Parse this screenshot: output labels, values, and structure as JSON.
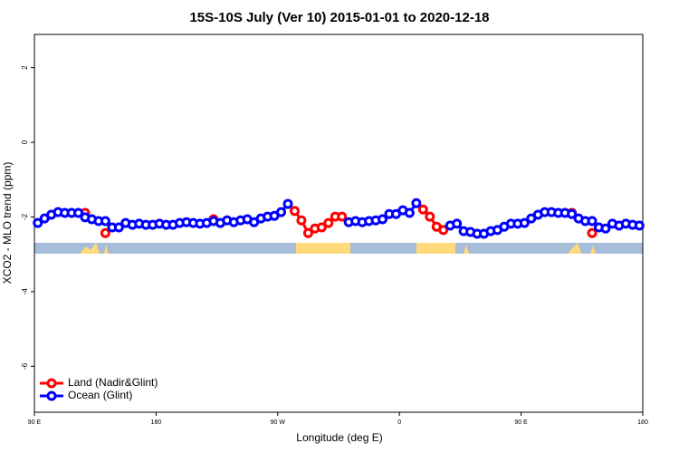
{
  "chart_data": {
    "type": "line",
    "title": "15S-10S July (Ver 10)   2015-01-01 to 2020-12-18",
    "xlabel": "Longitude (deg E)",
    "ylabel": "XCO2 - MLO trend (ppm)",
    "xlim": [
      90,
      540
    ],
    "ylim": [
      -7.23,
      2.89
    ],
    "xticks": [
      {
        "value": 90,
        "label": "90 E"
      },
      180,
      {
        "value": 270,
        "label": "90 W"
      },
      {
        "value": 360,
        "label": "0"
      },
      {
        "value": 450,
        "label": "90 E"
      },
      {
        "value": 540,
        "label": "180"
      }
    ],
    "yticks": [
      -6,
      -4,
      -2,
      0,
      2
    ],
    "legend": "bottomleft",
    "x": [
      92.5,
      97.5,
      102.5,
      107.5,
      112.5,
      117.5,
      122.5,
      127.5,
      132.5,
      137.5,
      142.5,
      147.5,
      152.5,
      157.5,
      162.5,
      167.5,
      172.5,
      177.5,
      182.5,
      187.5,
      192.5,
      197.5,
      202.5,
      207.5,
      212.5,
      217.5,
      222.5,
      227.5,
      232.5,
      237.5,
      242.5,
      247.5,
      252.5,
      257.5,
      262.5,
      267.5,
      272.5,
      277.5,
      282.5,
      287.5,
      292.5,
      297.5,
      302.5,
      307.5,
      312.5,
      317.5,
      322.5,
      327.5,
      332.5,
      337.5,
      342.5,
      347.5,
      352.5,
      357.5,
      362.5,
      367.5,
      372.5,
      377.5,
      382.5,
      387.5,
      392.5,
      397.5,
      402.5,
      407.5,
      412.5,
      417.5,
      422.5,
      427.5,
      432.5,
      437.5,
      442.5,
      447.5,
      452.5,
      457.5,
      462.5,
      467.5,
      472.5,
      477.5,
      482.5,
      487.5,
      492.5,
      497.5,
      502.5,
      507.5,
      512.5,
      517.5,
      522.5,
      527.5,
      532.5,
      537.5
    ],
    "series": [
      {
        "name": "Land (Nadir&Glint)",
        "color": "#ff0000",
        "values": [
          null,
          null,
          null,
          null,
          null,
          null,
          null,
          -1.89,
          null,
          null,
          -2.43,
          null,
          null,
          null,
          null,
          null,
          null,
          null,
          null,
          null,
          null,
          null,
          null,
          null,
          null,
          null,
          -2.06,
          null,
          null,
          null,
          null,
          null,
          null,
          null,
          null,
          null,
          null,
          null,
          -1.84,
          -2.09,
          -2.43,
          -2.31,
          -2.28,
          -2.16,
          -1.99,
          -1.99,
          null,
          null,
          null,
          null,
          null,
          null,
          null,
          null,
          null,
          null,
          null,
          -1.8,
          -1.99,
          -2.26,
          -2.35,
          null,
          null,
          null,
          null,
          null,
          null,
          null,
          null,
          null,
          null,
          null,
          null,
          null,
          null,
          null,
          null,
          null,
          null,
          -1.89,
          null,
          null,
          -2.43,
          null,
          null,
          null,
          null,
          null,
          null,
          null
        ]
      },
      {
        "name": "Ocean (Glint)",
        "color": "#0000ff",
        "values": [
          -2.16,
          -2.04,
          -1.94,
          -1.87,
          -1.89,
          -1.89,
          -1.89,
          -2.01,
          -2.06,
          -2.11,
          -2.11,
          -2.28,
          -2.28,
          -2.16,
          -2.21,
          -2.18,
          -2.21,
          -2.21,
          -2.18,
          -2.21,
          -2.21,
          -2.16,
          -2.14,
          -2.16,
          -2.18,
          -2.16,
          -2.11,
          -2.16,
          -2.09,
          -2.14,
          -2.09,
          -2.06,
          -2.14,
          -2.04,
          -1.99,
          -1.97,
          -1.87,
          -1.65,
          null,
          null,
          null,
          null,
          null,
          null,
          null,
          null,
          -2.14,
          -2.11,
          -2.14,
          -2.11,
          -2.09,
          -2.06,
          -1.92,
          -1.92,
          -1.82,
          -1.89,
          -1.63,
          null,
          null,
          null,
          null,
          -2.23,
          -2.18,
          -2.38,
          -2.4,
          -2.45,
          -2.45,
          -2.38,
          -2.35,
          -2.26,
          -2.18,
          -2.18,
          -2.16,
          -2.04,
          -1.94,
          -1.87,
          -1.87,
          -1.89,
          -1.89,
          -1.92,
          -2.04,
          -2.11,
          -2.11,
          -2.28,
          -2.31,
          -2.18,
          -2.23,
          -2.18,
          -2.21,
          -2.23
        ]
      }
    ]
  }
}
